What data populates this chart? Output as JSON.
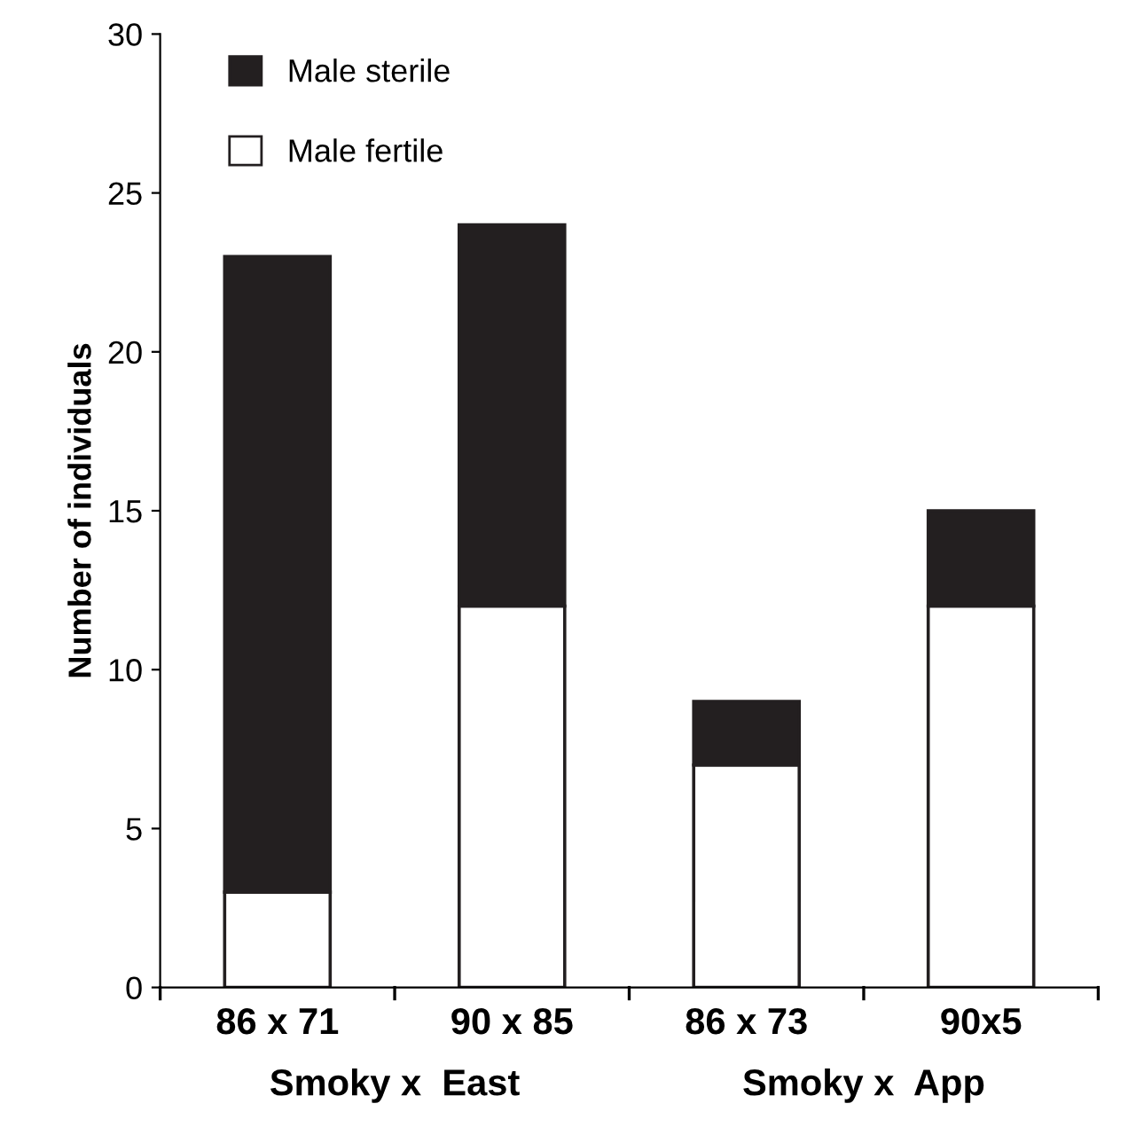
{
  "chart_data": {
    "type": "bar",
    "stacked": true,
    "ylabel": "Number of individuals",
    "categories": [
      "86 x 71",
      "90 x 85",
      "86 x 73",
      "90x5"
    ],
    "series": [
      {
        "name": "Male fertile",
        "color": "#ffffff",
        "values": [
          3,
          12,
          7,
          12
        ]
      },
      {
        "name": "Male sterile",
        "color": "#231f20",
        "values": [
          20,
          12,
          2,
          3
        ]
      }
    ],
    "ylim": [
      0,
      30
    ],
    "yticks": [
      0,
      5,
      10,
      15,
      20,
      25,
      30
    ],
    "annotations": [
      "Smoky x  East",
      "Smoky x  App"
    ],
    "legend": "top left",
    "grid": false
  }
}
